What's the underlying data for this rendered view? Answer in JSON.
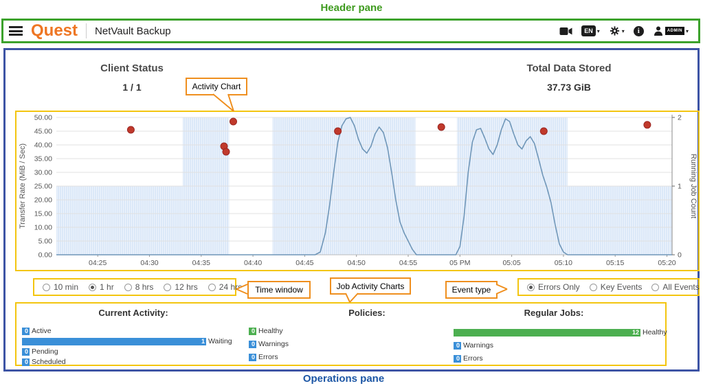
{
  "annotations": {
    "header_pane_label": "Header pane",
    "operations_pane_label": "Operations pane",
    "activity_chart_callout": "Activity Chart",
    "time_window_callout": "Time window",
    "job_activity_callout": "Job Activity Charts",
    "event_type_callout": "Event type"
  },
  "palette": {
    "quest_orange": "#ee7623",
    "callout_orange": "#ef8f1e",
    "highlight_yellow": "#f3c50f",
    "header_green": "#3ca22c",
    "operations_blue": "#3d54a5",
    "bar_blue": "#3a8fd8",
    "bar_green": "#4caf50",
    "error_red": "#c0392b",
    "line_blue": "#6f96b8",
    "job_area_blue": "#dbe8f8"
  },
  "header": {
    "logo_text": "Quest",
    "app_title": "NetVault Backup",
    "language_label": "EN",
    "info_glyph": "i",
    "user_label": "ADMIN",
    "icons": [
      "menu-icon",
      "video-camera-icon",
      "language-badge",
      "chevron-down-icon",
      "tools-icon",
      "info-icon",
      "user-icon"
    ]
  },
  "summary": {
    "client_status_label": "Client Status",
    "client_status_value": "1 / 1",
    "total_data_label": "Total Data Stored",
    "total_data_value": "37.73 GiB"
  },
  "controls": {
    "time_window": {
      "options": [
        "10 min",
        "1 hr",
        "8 hrs",
        "12 hrs",
        "24 hrs"
      ],
      "selected": "1 hr"
    },
    "event_type": {
      "options": [
        "Errors Only",
        "Key Events",
        "All Events"
      ],
      "selected": "Errors Only"
    }
  },
  "chart_data": {
    "type": "line",
    "title": "Activity Chart",
    "x_axis": {
      "unit": "minutes after 04:00 PM",
      "domain": [
        21,
        80.5
      ],
      "ticks": [
        {
          "t": 25,
          "label": "04:25"
        },
        {
          "t": 30,
          "label": "04:30"
        },
        {
          "t": 35,
          "label": "04:35"
        },
        {
          "t": 40,
          "label": "04:40"
        },
        {
          "t": 45,
          "label": "04:45"
        },
        {
          "t": 50,
          "label": "04:50"
        },
        {
          "t": 55,
          "label": "04:55"
        },
        {
          "t": 60,
          "label": "05 PM"
        },
        {
          "t": 65,
          "label": "05:05"
        },
        {
          "t": 70,
          "label": "05:10"
        },
        {
          "t": 75,
          "label": "05:15"
        },
        {
          "t": 80,
          "label": "05:20"
        }
      ]
    },
    "y_left": {
      "label": "Transfer Rate (MiB / Sec)",
      "min": 0,
      "max": 50,
      "tick_step": 5
    },
    "y_right": {
      "label": "Running Job Count",
      "min": 0,
      "max": 2,
      "ticks": [
        0,
        1,
        2
      ]
    },
    "grid": true,
    "series": [
      {
        "id": "jobs",
        "name": "Running Job Count",
        "type": "area-steps",
        "color": "#dbe8f8",
        "segments": [
          {
            "from": 21,
            "to": 33.2,
            "count": 1
          },
          {
            "from": 33.2,
            "to": 37.7,
            "count": 2
          },
          {
            "from": 37.7,
            "to": 41.9,
            "count": 0
          },
          {
            "from": 41.9,
            "to": 55.7,
            "count": 2
          },
          {
            "from": 55.7,
            "to": 59.7,
            "count": 1
          },
          {
            "from": 59.7,
            "to": 70.4,
            "count": 2
          },
          {
            "from": 70.4,
            "to": 80.5,
            "count": 1
          }
        ]
      },
      {
        "id": "transfer",
        "name": "Transfer Rate",
        "type": "line",
        "color": "#6f96b8",
        "points": [
          [
            21,
            0
          ],
          [
            46,
            0
          ],
          [
            46.5,
            1
          ],
          [
            47,
            8
          ],
          [
            47.4,
            18
          ],
          [
            47.8,
            30
          ],
          [
            48.2,
            41
          ],
          [
            48.6,
            47
          ],
          [
            49,
            49.5
          ],
          [
            49.4,
            50
          ],
          [
            49.8,
            47
          ],
          [
            50.2,
            42
          ],
          [
            50.6,
            38.5
          ],
          [
            51,
            37
          ],
          [
            51.4,
            39.5
          ],
          [
            51.8,
            44
          ],
          [
            52.2,
            46.5
          ],
          [
            52.6,
            44.5
          ],
          [
            53,
            39
          ],
          [
            53.4,
            30
          ],
          [
            53.8,
            20
          ],
          [
            54.2,
            12
          ],
          [
            54.6,
            8
          ],
          [
            55,
            5
          ],
          [
            55.4,
            2
          ],
          [
            55.8,
            0
          ],
          [
            59.6,
            0
          ],
          [
            60,
            3
          ],
          [
            60.4,
            14
          ],
          [
            60.8,
            30
          ],
          [
            61.2,
            41
          ],
          [
            61.6,
            45.5
          ],
          [
            62,
            46
          ],
          [
            62.4,
            42.5
          ],
          [
            62.8,
            38.5
          ],
          [
            63.2,
            36.5
          ],
          [
            63.6,
            40
          ],
          [
            64,
            45.5
          ],
          [
            64.4,
            49.5
          ],
          [
            64.8,
            48.5
          ],
          [
            65.2,
            44
          ],
          [
            65.6,
            40
          ],
          [
            66,
            38.5
          ],
          [
            66.4,
            41.5
          ],
          [
            66.8,
            43
          ],
          [
            67.2,
            40.5
          ],
          [
            67.6,
            35
          ],
          [
            68,
            29
          ],
          [
            68.4,
            24.5
          ],
          [
            68.8,
            19
          ],
          [
            69.2,
            11
          ],
          [
            69.6,
            4
          ],
          [
            70,
            1
          ],
          [
            70.4,
            0
          ],
          [
            80.5,
            0
          ]
        ]
      },
      {
        "id": "errors",
        "name": "Error Events",
        "type": "scatter",
        "color": "#c0392b",
        "points": [
          [
            28.2,
            45.5
          ],
          [
            37.2,
            39.5
          ],
          [
            37.4,
            37.5
          ],
          [
            38.1,
            48.5
          ],
          [
            48.2,
            45
          ],
          [
            58.2,
            46.5
          ],
          [
            68.1,
            45
          ],
          [
            78.1,
            47.3
          ]
        ]
      }
    ]
  },
  "job_activity": {
    "columns": [
      {
        "title": "Current Activity:",
        "rows": [
          {
            "label": "Active",
            "value": 0,
            "color": "#3a8fd8"
          },
          {
            "label": "Waiting",
            "value": 1,
            "color": "#3a8fd8"
          },
          {
            "label": "Pending",
            "value": 0,
            "color": "#3a8fd8"
          },
          {
            "label": "Scheduled",
            "value": 0,
            "color": "#3a8fd8"
          }
        ]
      },
      {
        "title": "Policies:",
        "rows": [
          {
            "label": "Healthy",
            "value": 0,
            "color": "#4caf50"
          },
          {
            "label": "Warnings",
            "value": 0,
            "color": "#3a8fd8"
          },
          {
            "label": "Errors",
            "value": 0,
            "color": "#3a8fd8"
          }
        ]
      },
      {
        "title": "Regular Jobs:",
        "rows": [
          {
            "label": "Healthy",
            "value": 12,
            "color": "#4caf50"
          },
          {
            "label": "Warnings",
            "value": 0,
            "color": "#3a8fd8"
          },
          {
            "label": "Errors",
            "value": 0,
            "color": "#3a8fd8"
          }
        ]
      }
    ]
  }
}
